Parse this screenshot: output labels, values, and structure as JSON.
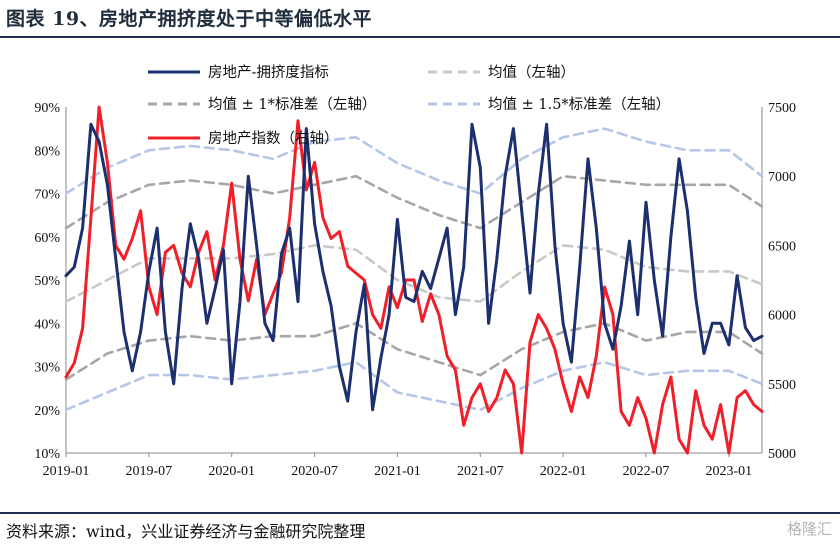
{
  "header": {
    "title": "图表 19、房地产拥挤度处于中等偏低水平"
  },
  "footer": {
    "source": "资料来源：wind，兴业证券经济与金融研究院整理",
    "watermark": "格隆汇"
  },
  "chart_data": {
    "type": "line",
    "x_ticks": [
      "2019-01",
      "2019-07",
      "2020-01",
      "2020-07",
      "2021-01",
      "2021-07",
      "2022-01",
      "2022-07",
      "2023-01"
    ],
    "x_start": "2019-01",
    "x_end": "2023-03",
    "y_left": {
      "ticks": [
        "10%",
        "20%",
        "30%",
        "40%",
        "50%",
        "60%",
        "70%",
        "80%",
        "90%"
      ],
      "range": [
        10,
        90
      ]
    },
    "y_right": {
      "ticks": [
        "5000",
        "5500",
        "6000",
        "6500",
        "7000",
        "7500"
      ],
      "range": [
        5000,
        7500
      ]
    },
    "legend": [
      {
        "label": "房地产-拥挤度指标",
        "style": "solid",
        "color": "#1c2f6e"
      },
      {
        "label": "均值（左轴）",
        "style": "dashed",
        "color": "#c8c8c8"
      },
      {
        "label": "均值 ± 1*标准差（左轴）",
        "style": "dashed",
        "color": "#a6a6a6"
      },
      {
        "label": "均值 ± 1.5*标准差（左轴）",
        "style": "dashed",
        "color": "#b4c7e7"
      },
      {
        "label": "房地产指数（右轴）",
        "style": "solid",
        "color": "#f0202a"
      }
    ],
    "series": [
      {
        "name": "房地产-拥挤度指标",
        "axis": "left",
        "color": "#1c2f6e",
        "x": [
          2019.0,
          2019.05,
          2019.1,
          2019.15,
          2019.2,
          2019.25,
          2019.3,
          2019.35,
          2019.4,
          2019.45,
          2019.5,
          2019.55,
          2019.6,
          2019.65,
          2019.7,
          2019.75,
          2019.8,
          2019.85,
          2019.9,
          2019.95,
          2020.0,
          2020.05,
          2020.1,
          2020.15,
          2020.2,
          2020.25,
          2020.3,
          2020.35,
          2020.4,
          2020.45,
          2020.5,
          2020.55,
          2020.6,
          2020.65,
          2020.7,
          2020.75,
          2020.8,
          2020.85,
          2020.9,
          2020.95,
          2021.0,
          2021.05,
          2021.1,
          2021.15,
          2021.2,
          2021.25,
          2021.3,
          2021.35,
          2021.4,
          2021.45,
          2021.5,
          2021.55,
          2021.6,
          2021.65,
          2021.7,
          2021.75,
          2021.8,
          2021.85,
          2021.9,
          2021.95,
          2022.0,
          2022.05,
          2022.1,
          2022.15,
          2022.2,
          2022.25,
          2022.3,
          2022.35,
          2022.4,
          2022.45,
          2022.5,
          2022.55,
          2022.6,
          2022.65,
          2022.7,
          2022.75,
          2022.8,
          2022.85,
          2022.9,
          2022.95,
          2023.0,
          2023.05,
          2023.1,
          2023.15,
          2023.2
        ],
        "values": [
          51,
          53,
          62,
          86,
          82,
          72,
          55,
          38,
          29,
          38,
          52,
          62,
          38,
          26,
          48,
          63,
          55,
          40,
          48,
          57,
          26,
          45,
          74,
          58,
          40,
          36,
          56,
          62,
          45,
          85,
          63,
          52,
          44,
          30,
          22,
          38,
          49,
          20,
          32,
          42,
          64,
          46,
          45,
          52,
          48,
          55,
          62,
          42,
          53,
          86,
          76,
          40,
          55,
          74,
          85,
          66,
          47,
          70,
          86,
          58,
          40,
          31,
          53,
          78,
          62,
          40,
          34,
          44,
          59,
          42,
          68,
          50,
          37,
          60,
          78,
          66,
          46,
          33,
          40,
          40,
          35,
          51,
          39,
          36,
          37
        ]
      },
      {
        "name": "房地产指数（右轴）",
        "axis": "right",
        "color": "#f0202a",
        "x": [
          2019.0,
          2019.05,
          2019.1,
          2019.15,
          2019.2,
          2019.25,
          2019.3,
          2019.35,
          2019.4,
          2019.45,
          2019.5,
          2019.55,
          2019.6,
          2019.65,
          2019.7,
          2019.75,
          2019.8,
          2019.85,
          2019.9,
          2019.95,
          2020.0,
          2020.05,
          2020.1,
          2020.15,
          2020.2,
          2020.25,
          2020.3,
          2020.35,
          2020.4,
          2020.45,
          2020.5,
          2020.55,
          2020.6,
          2020.65,
          2020.7,
          2020.75,
          2020.8,
          2020.85,
          2020.9,
          2020.95,
          2021.0,
          2021.05,
          2021.1,
          2021.15,
          2021.2,
          2021.25,
          2021.3,
          2021.35,
          2021.4,
          2021.45,
          2021.5,
          2021.55,
          2021.6,
          2021.65,
          2021.7,
          2021.75,
          2021.8,
          2021.85,
          2021.9,
          2021.95,
          2022.0,
          2022.05,
          2022.1,
          2022.15,
          2022.2,
          2022.25,
          2022.3,
          2022.35,
          2022.4,
          2022.45,
          2022.5,
          2022.55,
          2022.6,
          2022.65,
          2022.7,
          2022.75,
          2022.8,
          2022.85,
          2022.9,
          2022.95,
          2023.0,
          2023.05,
          2023.1,
          2023.15,
          2023.2
        ],
        "values": [
          5550,
          5650,
          5900,
          6700,
          7500,
          7100,
          6500,
          6400,
          6550,
          6750,
          6200,
          6000,
          6450,
          6500,
          6300,
          6200,
          6450,
          6600,
          6250,
          6500,
          6950,
          6400,
          6100,
          6400,
          6000,
          6150,
          6300,
          6700,
          7400,
          6900,
          7100,
          6700,
          6550,
          6600,
          6350,
          6300,
          6250,
          6000,
          5900,
          6200,
          6050,
          6250,
          6250,
          5950,
          6150,
          6000,
          5700,
          5600,
          5200,
          5400,
          5500,
          5300,
          5400,
          5600,
          5500,
          5000,
          5800,
          6000,
          5900,
          5750,
          5500,
          5300,
          5550,
          5400,
          5700,
          6200,
          6000,
          5300,
          5200,
          5400,
          5250,
          5000,
          5350,
          5550,
          5100,
          5000,
          5450,
          5200,
          5100,
          5350,
          5000,
          5400,
          5450,
          5350,
          5300
        ]
      },
      {
        "name": "均值（左轴）",
        "axis": "left",
        "color": "#c8c8c8",
        "x": [
          2019.0,
          2019.25,
          2019.5,
          2019.75,
          2020.0,
          2020.25,
          2020.5,
          2020.75,
          2021.0,
          2021.25,
          2021.5,
          2021.75,
          2022.0,
          2022.25,
          2022.5,
          2022.75,
          2023.0,
          2023.2
        ],
        "values": [
          45,
          50,
          55,
          55,
          55,
          56,
          58,
          57,
          50,
          46,
          45,
          52,
          58,
          57,
          53,
          52,
          52,
          49
        ]
      },
      {
        "name": "均值 ± 1*标准差（左轴）",
        "axis": "left",
        "color": "#a6a6a6",
        "x": [
          2019.0,
          2019.25,
          2019.5,
          2019.75,
          2020.0,
          2020.25,
          2020.5,
          2020.75,
          2021.0,
          2021.25,
          2021.5,
          2021.75,
          2022.0,
          2022.25,
          2022.5,
          2022.75,
          2023.0,
          2023.2
        ],
        "values": [
          62,
          68,
          72,
          73,
          72,
          70,
          72,
          74,
          69,
          65,
          62,
          68,
          74,
          73,
          72,
          72,
          72,
          67
        ]
      },
      {
        "name": "均值 ± 1*标准差（左轴）",
        "axis": "left",
        "color": "#a6a6a6",
        "x": [
          2019.0,
          2019.25,
          2019.5,
          2019.75,
          2020.0,
          2020.25,
          2020.5,
          2020.75,
          2021.0,
          2021.25,
          2021.5,
          2021.75,
          2022.0,
          2022.25,
          2022.5,
          2022.75,
          2023.0,
          2023.2
        ],
        "values": [
          27,
          33,
          36,
          37,
          36,
          37,
          37,
          40,
          34,
          31,
          28,
          34,
          38,
          40,
          36,
          38,
          38,
          33
        ]
      },
      {
        "name": "均值 ± 1.5*标准差（左轴）",
        "axis": "left",
        "color": "#b4c7e7",
        "x": [
          2019.0,
          2019.25,
          2019.5,
          2019.75,
          2020.0,
          2020.25,
          2020.5,
          2020.75,
          2021.0,
          2021.25,
          2021.5,
          2021.75,
          2022.0,
          2022.25,
          2022.5,
          2022.75,
          2023.0,
          2023.2
        ],
        "values": [
          70,
          76,
          80,
          81,
          80,
          78,
          82,
          83,
          77,
          73,
          70,
          78,
          83,
          85,
          82,
          80,
          80,
          74
        ]
      },
      {
        "name": "均值 ± 1.5*标准差（左轴）",
        "axis": "left",
        "color": "#b4c7e7",
        "x": [
          2019.0,
          2019.25,
          2019.5,
          2019.75,
          2020.0,
          2020.25,
          2020.5,
          2020.75,
          2021.0,
          2021.25,
          2021.5,
          2021.75,
          2022.0,
          2022.25,
          2022.5,
          2022.75,
          2023.0,
          2023.2
        ],
        "values": [
          20,
          24,
          28,
          28,
          27,
          28,
          29,
          31,
          24,
          22,
          20,
          25,
          29,
          31,
          28,
          29,
          29,
          26
        ]
      }
    ]
  }
}
